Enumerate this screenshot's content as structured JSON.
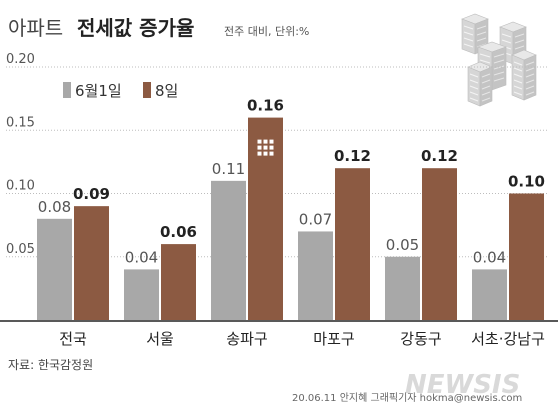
{
  "header": {
    "title_part1": "아파트",
    "title_part2": "전세값 증가율",
    "subtitle": "전주 대비, 단위:%"
  },
  "chart_data": {
    "type": "bar",
    "title": "아파트 전세값 증가율",
    "subtitle": "전주 대비, 단위:%",
    "categories": [
      "전국",
      "서울",
      "송파구",
      "마포구",
      "강동구",
      "서초·강남구"
    ],
    "series": [
      {
        "name": "6월1일",
        "values": [
          0.08,
          0.04,
          0.11,
          0.07,
          0.05,
          0.04
        ],
        "labels": [
          "0.08",
          "0.04",
          "0.11",
          "0.07",
          "0.05",
          "0.04"
        ],
        "color": "#a8a8a8"
      },
      {
        "name": "8일",
        "values": [
          0.09,
          0.06,
          0.16,
          0.12,
          0.12,
          0.1
        ],
        "labels": [
          "0.09",
          "0.06",
          "0.16",
          "0.12",
          "0.12",
          "0.10"
        ],
        "color": "#8c5a42"
      }
    ],
    "yticks": [
      "0.20",
      "0.15",
      "0.10",
      "0.05"
    ],
    "ylim": [
      0,
      0.2
    ],
    "grid": true,
    "legend_position": "top-left"
  },
  "footer": {
    "source": "자료: 한국감정원",
    "credit": "20.06.11 안지혜 그래픽기자 hokma@newsis.com",
    "watermark": "NEWSIS"
  }
}
